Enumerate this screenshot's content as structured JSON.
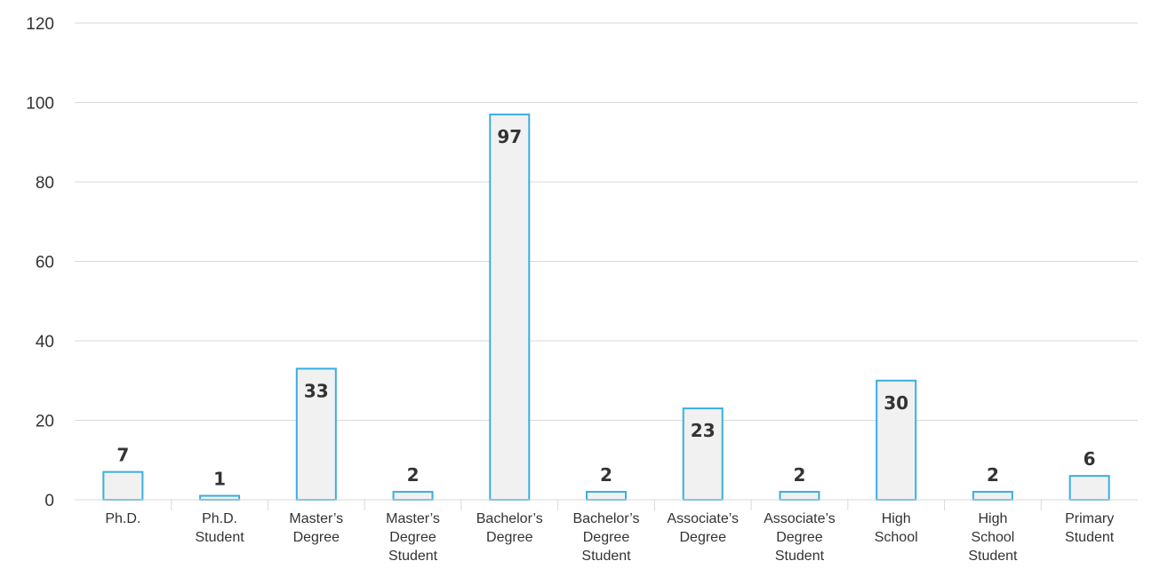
{
  "chart_data": {
    "type": "bar",
    "categories": [
      "Ph.D.",
      "Ph.D. Student",
      "Master’s Degree",
      "Master’s Degree Student",
      "Bachelor’s Degree",
      "Bachelor’s Degree Student",
      "Associate’s Degree",
      "Associate’s Degree Student",
      "High School",
      "High School Student",
      "Primary Student"
    ],
    "category_lines": [
      [
        "Ph.D."
      ],
      [
        "Ph.D.",
        "Student"
      ],
      [
        "Master’s",
        "Degree"
      ],
      [
        "Master’s",
        "Degree",
        "Student"
      ],
      [
        "Bachelor’s",
        "Degree"
      ],
      [
        "Bachelor’s",
        "Degree",
        "Student"
      ],
      [
        "Associate’s",
        "Degree"
      ],
      [
        "Associate’s",
        "Degree",
        "Student"
      ],
      [
        "High",
        "School"
      ],
      [
        "High",
        "School",
        "Student"
      ],
      [
        "Primary",
        "Student"
      ]
    ],
    "values": [
      7,
      1,
      33,
      2,
      97,
      2,
      23,
      2,
      30,
      2,
      6
    ],
    "ylim": [
      0,
      120
    ],
    "yticks": [
      0,
      20,
      40,
      60,
      80,
      100,
      120
    ],
    "grid": true,
    "colors": {
      "bar_fill": "#f1f1f1",
      "bar_stroke": "#3aaee0",
      "grid": "#d9d9d9",
      "text": "#333333"
    }
  }
}
